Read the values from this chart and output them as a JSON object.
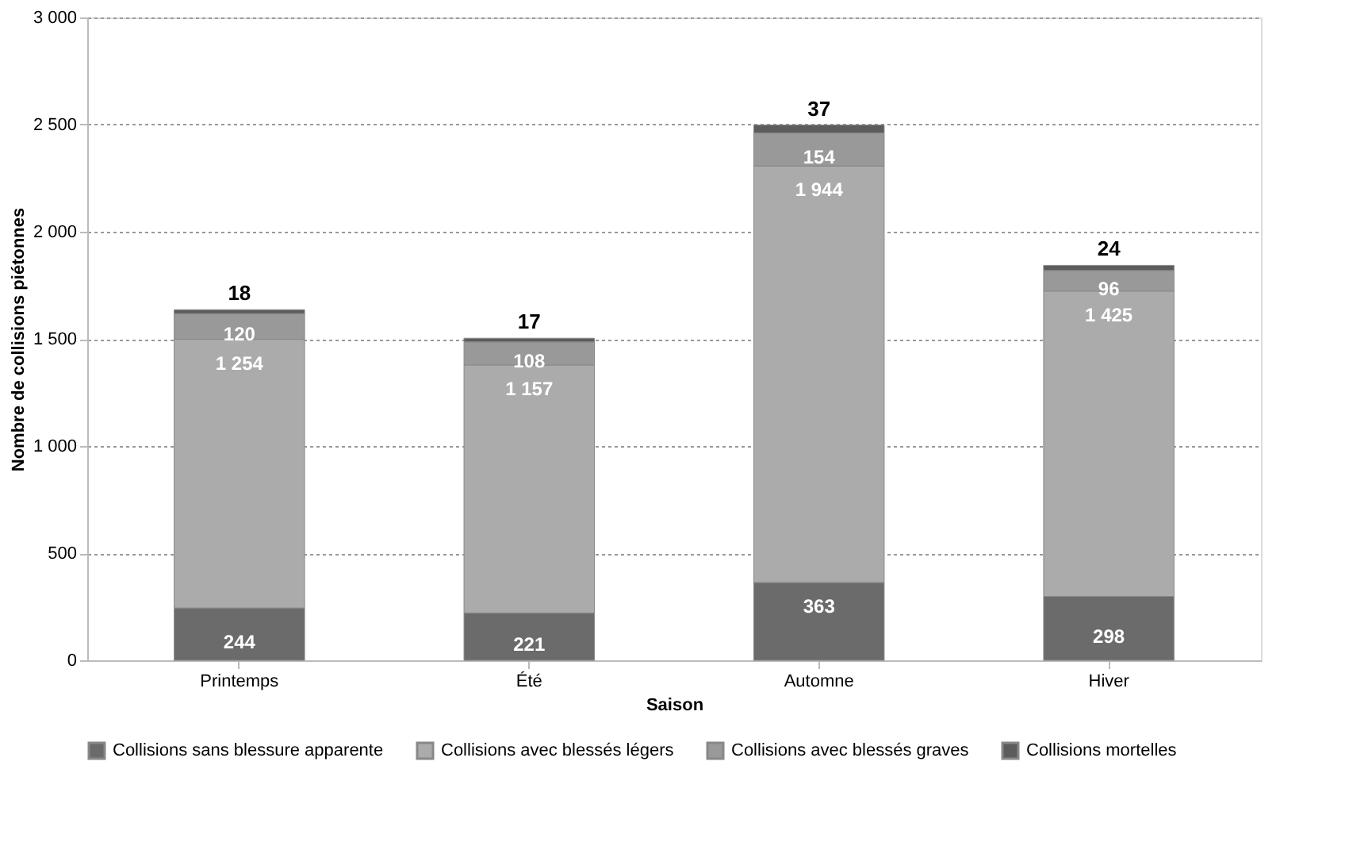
{
  "chart_data": {
    "type": "bar",
    "stacked": true,
    "xlabel": "Saison",
    "ylabel": "Nombre de collisions piétonnes",
    "categories": [
      "Printemps",
      "Été",
      "Automne",
      "Hiver"
    ],
    "series": [
      {
        "name": "Collisions sans blessure apparente",
        "color": "#6b6b6b",
        "values": [
          244,
          221,
          363,
          298
        ],
        "value_labels": [
          "244",
          "221",
          "363",
          "298"
        ]
      },
      {
        "name": "Collisions avec blessés légers",
        "color": "#ababab",
        "values": [
          1254,
          1157,
          1944,
          1425
        ],
        "value_labels": [
          "1 254",
          "1 157",
          "1 944",
          "1 425"
        ]
      },
      {
        "name": "Collisions avec blessés graves",
        "color": "#999999",
        "values": [
          120,
          108,
          154,
          96
        ],
        "value_labels": [
          "120",
          "108",
          "154",
          "96"
        ]
      },
      {
        "name": "Collisions mortelles",
        "color": "#5c5c5c",
        "values": [
          18,
          17,
          37,
          24
        ],
        "value_labels": [
          "18",
          "17",
          "37",
          "24"
        ]
      }
    ],
    "ylim": [
      0,
      3000
    ],
    "yticks": [
      0,
      500,
      {
        "value": 1000,
        "label": "1 000"
      },
      {
        "value": 1500,
        "label": "1 500"
      },
      {
        "value": 2000,
        "label": "2 000"
      },
      {
        "value": 2500,
        "label": "2 500"
      },
      {
        "value": 3000,
        "label": "3 000"
      }
    ],
    "grid": "y",
    "legend": "bottom"
  }
}
